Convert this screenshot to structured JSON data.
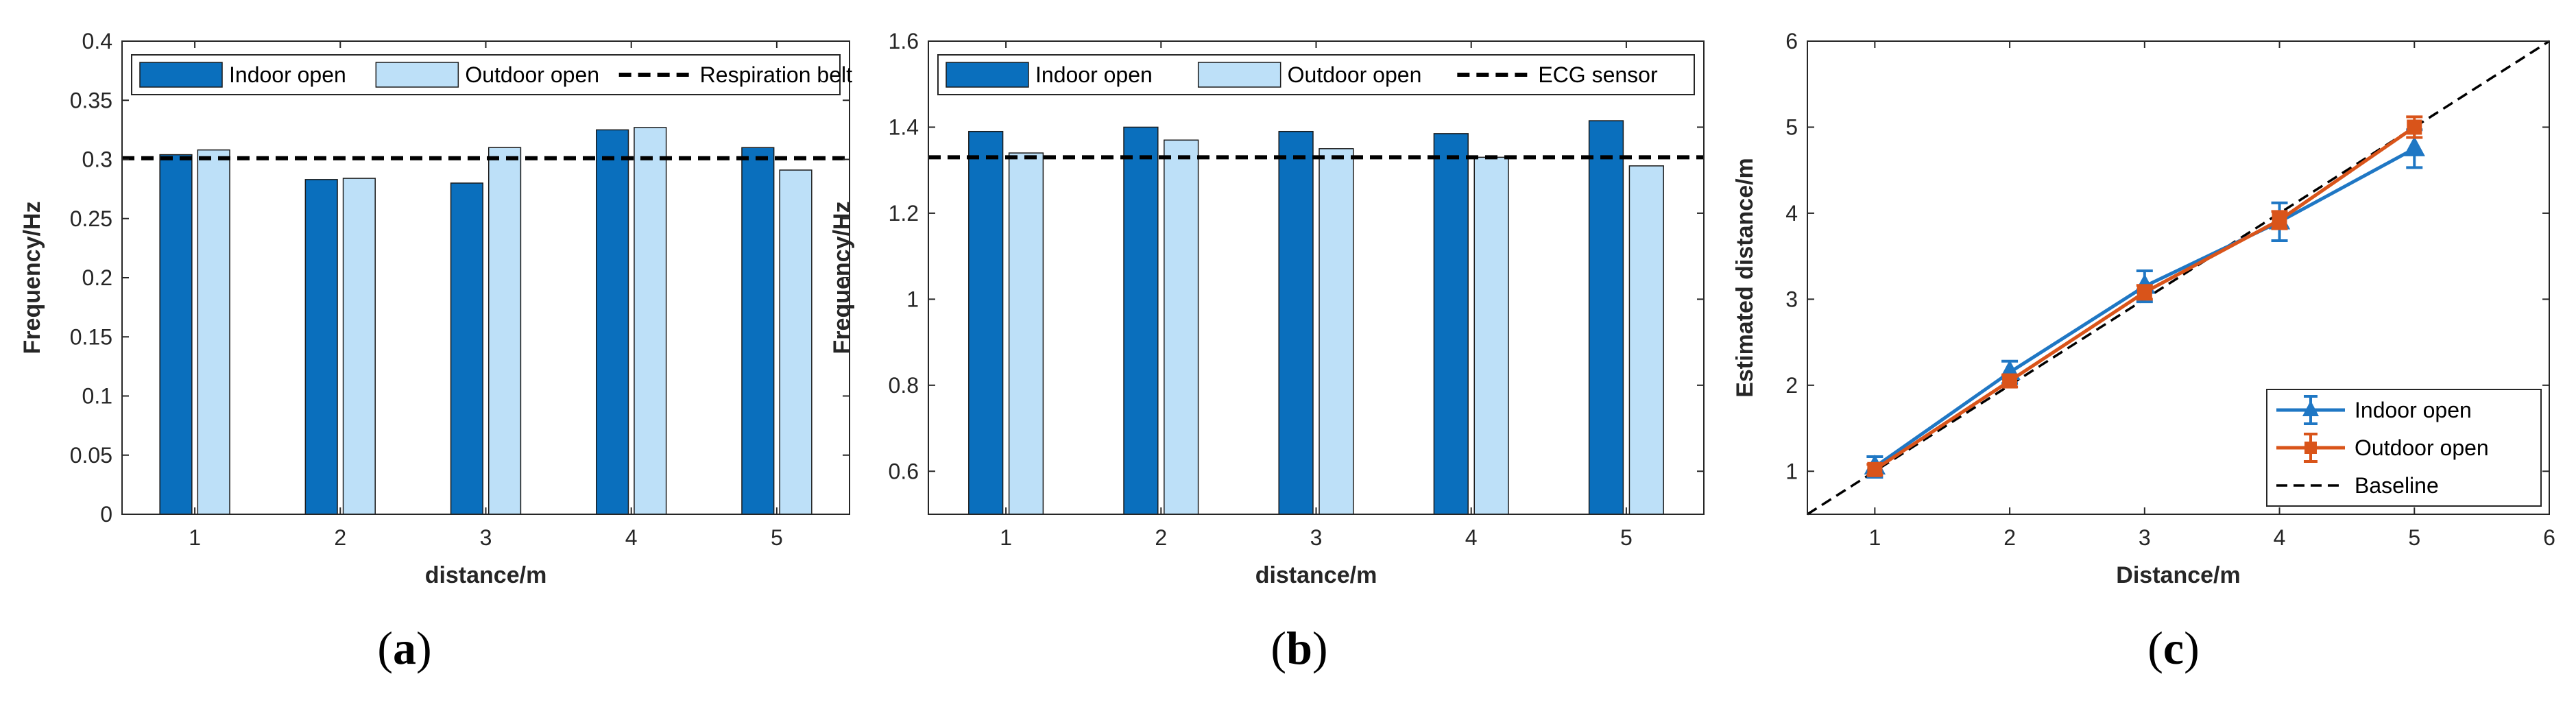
{
  "chart_data": [
    {
      "type": "bar",
      "panel_label_open": "(",
      "panel_label_letter": "a",
      "panel_label_close": ")",
      "xlabel": "distance/m",
      "ylabel": "Frequency/Hz",
      "categories": [
        "1",
        "2",
        "3",
        "4",
        "5"
      ],
      "ylim": [
        0,
        0.4
      ],
      "yticks": [
        "0",
        "0.05",
        "0.1",
        "0.15",
        "0.2",
        "0.25",
        "0.3",
        "0.35",
        "0.4"
      ],
      "series": [
        {
          "name": "Indoor open",
          "color": "#0a6fbd",
          "values": [
            0.304,
            0.283,
            0.28,
            0.325,
            0.31
          ]
        },
        {
          "name": "Outdoor open",
          "color": "#bde0f8",
          "values": [
            0.308,
            0.284,
            0.31,
            0.327,
            0.291
          ]
        }
      ],
      "reference": {
        "name": "Respiration belt",
        "value": 0.301
      },
      "legend_placement": "top",
      "grid": false
    },
    {
      "type": "bar",
      "panel_label_open": "(",
      "panel_label_letter": "b",
      "panel_label_close": ")",
      "xlabel": "distance/m",
      "ylabel": "Frequency/Hz",
      "categories": [
        "1",
        "2",
        "3",
        "4",
        "5"
      ],
      "ylim": [
        0.5,
        1.6
      ],
      "yticks": [
        "0.6",
        "0.8",
        "1",
        "1.2",
        "1.4",
        "1.6"
      ],
      "series": [
        {
          "name": "Indoor open",
          "color": "#0a6fbd",
          "values": [
            1.39,
            1.4,
            1.39,
            1.385,
            1.415
          ]
        },
        {
          "name": "Outdoor open",
          "color": "#bde0f8",
          "values": [
            1.34,
            1.37,
            1.35,
            1.33,
            1.31
          ]
        }
      ],
      "reference": {
        "name": "ECG sensor",
        "value": 1.33
      },
      "legend_placement": "top",
      "grid": false
    },
    {
      "type": "line",
      "panel_label_open": "(",
      "panel_label_letter": "c",
      "panel_label_close": ")",
      "xlabel": "Distance/m",
      "ylabel": "Estimated distance/m",
      "xlim": [
        0.5,
        6
      ],
      "ylim": [
        0.5,
        6
      ],
      "xticks": [
        "1",
        "2",
        "3",
        "4",
        "5",
        "6"
      ],
      "yticks": [
        "1",
        "2",
        "3",
        "4",
        "5",
        "6"
      ],
      "series": [
        {
          "name": "Indoor open",
          "color": "#1f77c4",
          "marker": "triangle",
          "x": [
            1,
            2,
            3,
            4,
            5
          ],
          "y": [
            1.05,
            2.15,
            3.15,
            3.9,
            4.75
          ],
          "err": [
            0.12,
            0.13,
            0.18,
            0.22,
            0.22
          ]
        },
        {
          "name": "Outdoor open",
          "color": "#d9541a",
          "marker": "square",
          "x": [
            1,
            2,
            3,
            4,
            5
          ],
          "y": [
            1.02,
            2.05,
            3.08,
            3.92,
            5.0
          ],
          "err": [
            0.06,
            0.07,
            0.08,
            0.1,
            0.12
          ]
        }
      ],
      "baseline": {
        "name": "Baseline",
        "color": "#000000"
      },
      "legend_placement": "bottom-right",
      "grid": false
    }
  ]
}
